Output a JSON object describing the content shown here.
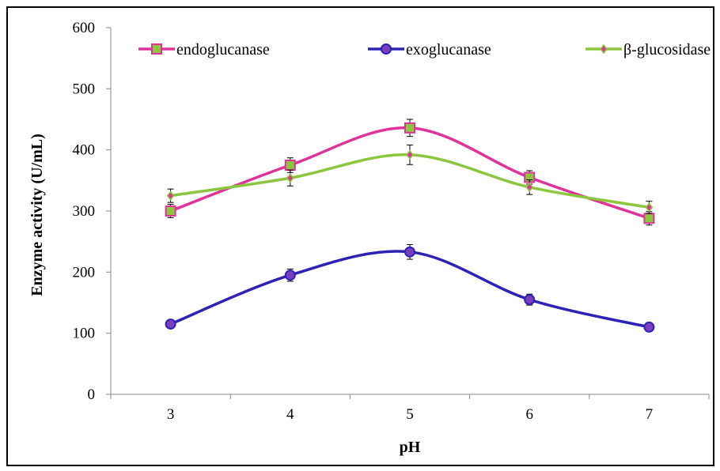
{
  "chart_data": {
    "type": "line",
    "xlabel": "pH",
    "ylabel": "Enzyme activity (U/mL)",
    "x": [
      3,
      4,
      5,
      6,
      7
    ],
    "ylim": [
      0,
      600
    ],
    "yticks": [
      0,
      100,
      200,
      300,
      400,
      500,
      600
    ],
    "grid": false,
    "legend_position": "top",
    "series": [
      {
        "name": "endoglucanase",
        "values": [
          300,
          375,
          436,
          355,
          288
        ],
        "errors": [
          11,
          12,
          14,
          11,
          11
        ],
        "line_color": "#e0339a",
        "marker": "square",
        "marker_fill": "#8cc63f",
        "marker_stroke": "#e0339a"
      },
      {
        "name": "exoglucanase",
        "values": [
          115,
          195,
          233,
          155,
          110
        ],
        "errors": [
          5,
          10,
          12,
          9,
          6
        ],
        "line_color": "#2e21b5",
        "marker": "circle",
        "marker_fill": "#7a3fbf",
        "marker_stroke": "#2e21b5"
      },
      {
        "name": "β-glucosidase",
        "values": [
          325,
          354,
          392,
          339,
          306
        ],
        "errors": [
          11,
          13,
          16,
          12,
          10
        ],
        "line_color": "#8cc63f",
        "marker": "diamond",
        "marker_fill": "#e0339a",
        "marker_stroke": "#8cc63f"
      }
    ]
  }
}
